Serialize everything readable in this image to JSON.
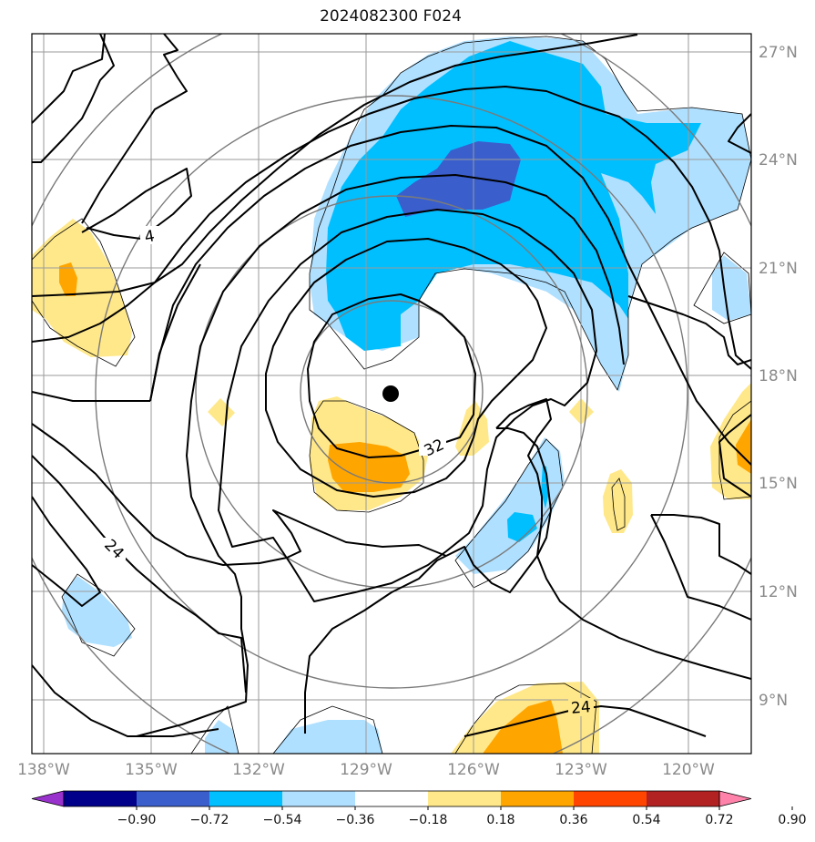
{
  "title": "2024082300 F024",
  "map": {
    "x_ticks": [
      "138°W",
      "135°W",
      "132°W",
      "129°W",
      "126°W",
      "123°W",
      "120°W"
    ],
    "y_ticks": [
      "27°N",
      "24°N",
      "21°N",
      "18°N",
      "15°N",
      "12°N",
      "9°N"
    ],
    "contour_labels": [
      "4",
      "32",
      "24",
      "24"
    ],
    "center_marker": "storm-center-dot"
  },
  "colorbar": {
    "ticks": [
      "−0.90",
      "−0.72",
      "−0.54",
      "−0.36",
      "−0.18",
      "0.18",
      "0.36",
      "0.54",
      "0.72",
      "0.90"
    ],
    "colors": [
      "#9932cc",
      "#00008b",
      "#3a5fcd",
      "#00bfff",
      "#b0e0ff",
      "#ffffff",
      "#ffe88a",
      "#ffa500",
      "#ff4500",
      "#b22222",
      "#ff82ab"
    ]
  },
  "colors": {
    "neg_weak": "#b0e0ff",
    "neg_mid": "#00bfff",
    "neg_strong": "#3a5fcd",
    "pos_weak": "#ffe88a",
    "pos_mid": "#ffa500"
  }
}
